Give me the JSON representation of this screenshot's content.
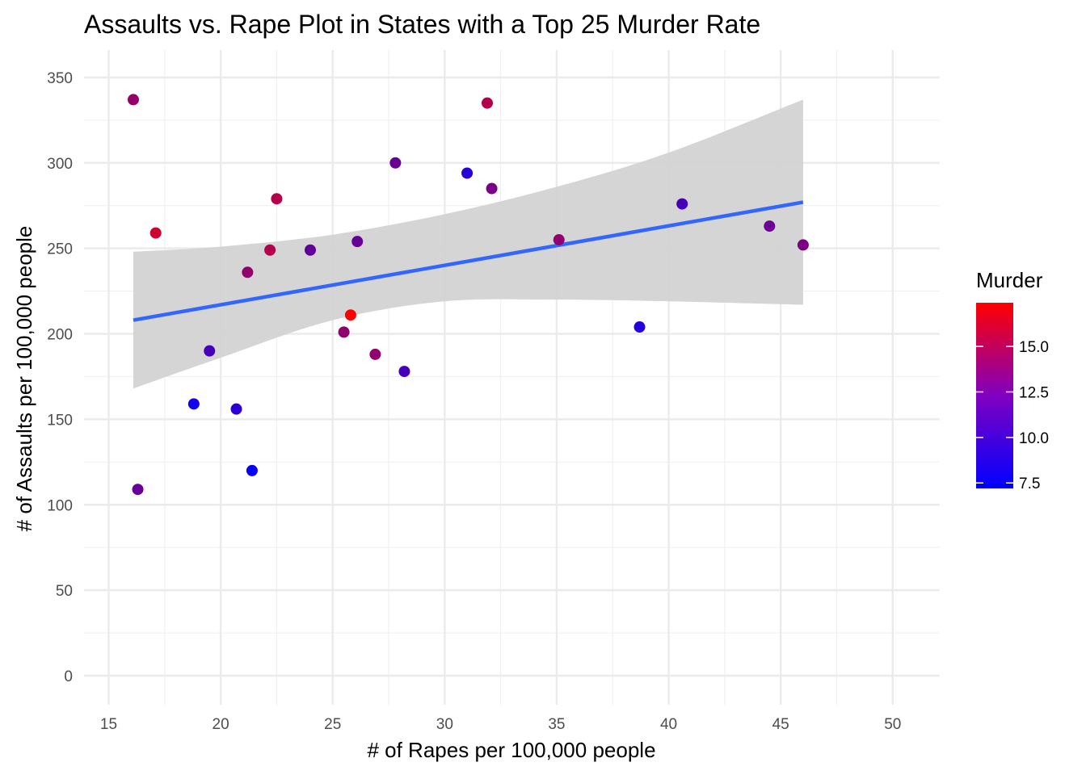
{
  "chart_data": {
    "type": "scatter",
    "title": "Assaults vs. Rape Plot in States with a Top 25 Murder Rate",
    "xlabel": "# of Rapes per 100,000 people",
    "ylabel": "# of Assaults per 100,000 people",
    "xlim": [
      13.9,
      52.1
    ],
    "ylim": [
      -17,
      366
    ],
    "x_ticks": [
      15,
      20,
      25,
      30,
      35,
      40,
      45,
      50
    ],
    "x_tick_labels": [
      "15",
      "20",
      "25",
      "30",
      "35",
      "40",
      "45",
      "50"
    ],
    "y_ticks": [
      0,
      50,
      100,
      150,
      200,
      250,
      300,
      350
    ],
    "y_tick_labels": [
      "0",
      "50",
      "100",
      "150",
      "200",
      "250",
      "300",
      "350"
    ],
    "grid": true,
    "legend": {
      "title": "Murder",
      "placement": "right",
      "type": "colorbar",
      "range": [
        7.2,
        17.4
      ],
      "ticks": [
        7.5,
        10.0,
        12.5,
        15.0
      ],
      "tick_labels": [
        "7.5",
        "10.0",
        "12.5",
        "15.0"
      ],
      "low_color": "#0000ff",
      "high_color": "#ff0000"
    },
    "points": [
      {
        "x": 16.1,
        "y": 337,
        "murder": 13.2
      },
      {
        "x": 16.3,
        "y": 109,
        "murder": 11.3
      },
      {
        "x": 17.1,
        "y": 259,
        "murder": 15.4
      },
      {
        "x": 18.8,
        "y": 159,
        "murder": 7.9
      },
      {
        "x": 19.5,
        "y": 190,
        "murder": 10.0
      },
      {
        "x": 20.7,
        "y": 156,
        "murder": 9.0
      },
      {
        "x": 21.2,
        "y": 236,
        "murder": 13.0
      },
      {
        "x": 21.4,
        "y": 120,
        "murder": 7.4
      },
      {
        "x": 22.2,
        "y": 249,
        "murder": 14.4
      },
      {
        "x": 22.5,
        "y": 279,
        "murder": 14.4
      },
      {
        "x": 24.0,
        "y": 249,
        "murder": 11.1
      },
      {
        "x": 25.5,
        "y": 201,
        "murder": 13.0
      },
      {
        "x": 25.8,
        "y": 211,
        "murder": 17.4
      },
      {
        "x": 26.1,
        "y": 254,
        "murder": 11.4
      },
      {
        "x": 26.9,
        "y": 188,
        "murder": 13.0
      },
      {
        "x": 27.8,
        "y": 300,
        "murder": 11.4
      },
      {
        "x": 28.2,
        "y": 178,
        "murder": 10.0
      },
      {
        "x": 31.0,
        "y": 294,
        "murder": 8.8
      },
      {
        "x": 31.9,
        "y": 335,
        "murder": 14.4
      },
      {
        "x": 32.1,
        "y": 285,
        "murder": 12.1
      },
      {
        "x": 35.1,
        "y": 255,
        "murder": 13.0
      },
      {
        "x": 38.7,
        "y": 204,
        "murder": 8.6
      },
      {
        "x": 40.6,
        "y": 276,
        "murder": 10.0
      },
      {
        "x": 44.5,
        "y": 263,
        "murder": 11.5
      },
      {
        "x": 46.0,
        "y": 252,
        "murder": 12.2
      }
    ],
    "trend_line": {
      "method": "linear",
      "x": [
        16.1,
        46.0
      ],
      "y": [
        208,
        277
      ],
      "color": "#3366ff"
    },
    "confidence_band": {
      "color": "#d3d3d3",
      "x": [
        16.1,
        20,
        25,
        30,
        35,
        40,
        46.0
      ],
      "upper": [
        248,
        251,
        258,
        270,
        286,
        306,
        337
      ],
      "lower": [
        168,
        186,
        208,
        219,
        220,
        219,
        217
      ]
    }
  }
}
